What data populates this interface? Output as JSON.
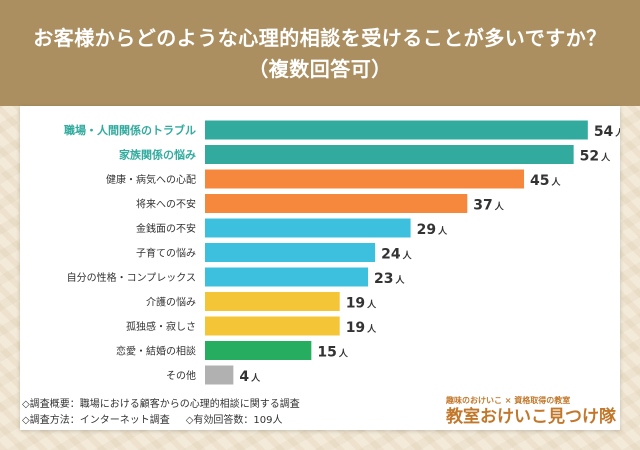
{
  "header": {
    "title_line1": "お客様からどのような心理的相談を受けることが多いですか？",
    "title_line2": "（複数回答可）"
  },
  "chart_data": {
    "type": "bar",
    "orientation": "horizontal",
    "unit": "人",
    "categories": [
      "職場・人間関係のトラブル",
      "家族関係の悩み",
      "健康・病気への心配",
      "将来への不安",
      "金銭面の不安",
      "子育ての悩み",
      "自分の性格・コンプレックス",
      "介護の悩み",
      "孤独感・寂しさ",
      "恋愛・結婚の相談",
      "その他"
    ],
    "values": [
      54,
      52,
      45,
      37,
      29,
      24,
      23,
      19,
      19,
      15,
      4
    ],
    "colors": [
      "#32ab9e",
      "#32ab9e",
      "#f5883d",
      "#f5883d",
      "#3cc0de",
      "#3cc0de",
      "#3cc0de",
      "#f5c538",
      "#f5c538",
      "#27ad5f",
      "#b1b1b1"
    ],
    "highlight_label_color": "#32ab9e",
    "highlight_count": 2,
    "xlim": [
      0,
      56
    ]
  },
  "footer": {
    "line1": "◇調査概要：職場における顧客からの心理的相談に関する調査",
    "line2a": "◇調査方法：インターネット調査",
    "line2b": "◇有効回答数：109人"
  },
  "logo": {
    "sub": "趣味のおけいこ × 資格取得の教室",
    "main": "教室おけいこ見つけ隊"
  }
}
